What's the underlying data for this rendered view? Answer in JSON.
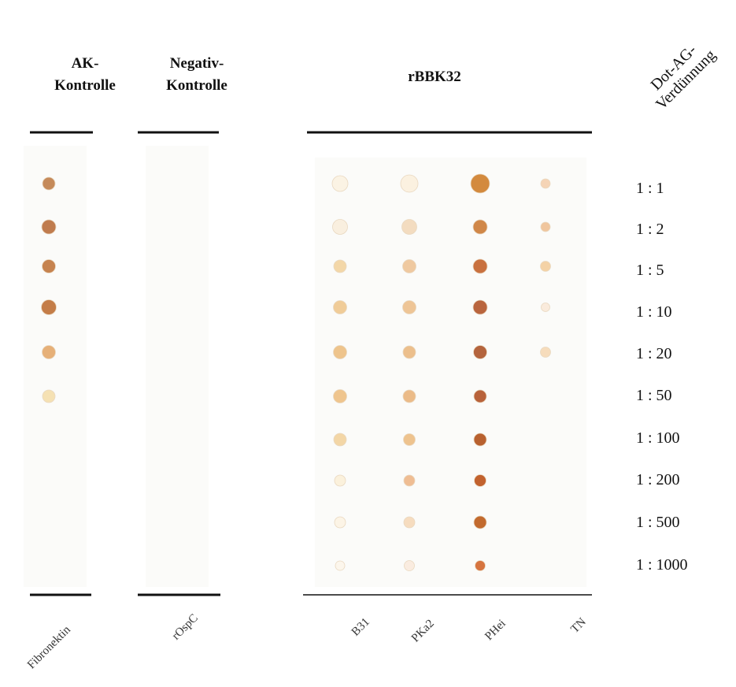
{
  "headers": [
    {
      "lines": [
        "AK-",
        "Kontrolle"
      ]
    },
    {
      "lines": [
        "Negativ-",
        "Kontrolle"
      ]
    },
    {
      "lines": [
        "rBBK32"
      ]
    }
  ],
  "dilution_header": {
    "lines": [
      "Dot-AG-",
      "Verdünnung"
    ]
  },
  "dilutions": [
    "1 : 1",
    "1 : 2",
    "1 : 5",
    "1 : 10",
    "1 : 20",
    "1 : 50",
    "1 : 100",
    "1 : 200",
    "1 : 500",
    "1 : 1000"
  ],
  "lanes": [
    "Fibronektin",
    "rOspC",
    "B31",
    "PKa2",
    "PHei",
    "TN"
  ]
}
